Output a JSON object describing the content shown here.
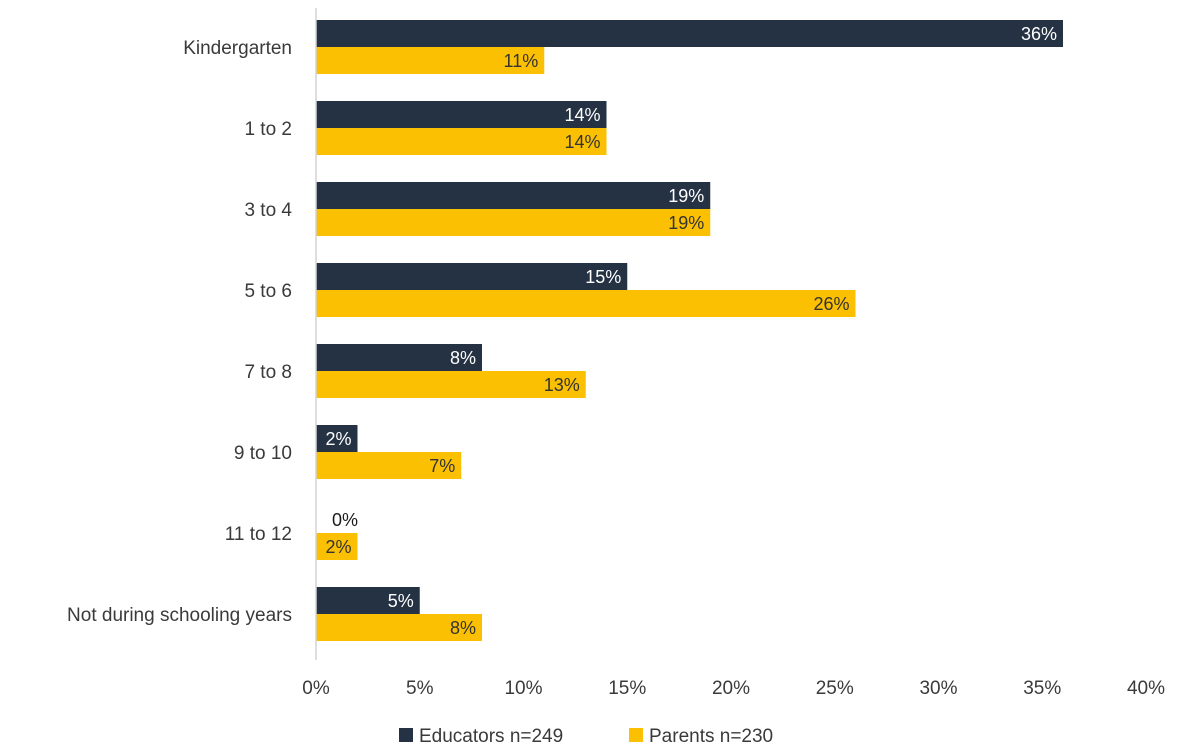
{
  "chart_data": {
    "type": "bar",
    "orientation": "horizontal",
    "categories": [
      "Kindergarten",
      "1 to 2",
      "3 to 4",
      "5 to 6",
      "7 to 8",
      "9 to 10",
      "11 to 12",
      "Not during schooling years"
    ],
    "series": [
      {
        "name": "Educators n=249",
        "color": "#253244",
        "values": [
          36,
          14,
          19,
          15,
          8,
          2,
          0,
          5
        ],
        "labels": [
          "36%",
          "14%",
          "19%",
          "15%",
          "8%",
          "2%",
          "0%",
          "5%"
        ]
      },
      {
        "name": "Parents n=230",
        "color": "#FBC002",
        "values": [
          11,
          14,
          19,
          26,
          13,
          7,
          2,
          8
        ],
        "labels": [
          "11%",
          "14%",
          "19%",
          "26%",
          "13%",
          "7%",
          "2%",
          "8%"
        ]
      }
    ],
    "xlim": [
      0,
      40
    ],
    "xticks": [
      "0%",
      "5%",
      "10%",
      "15%",
      "20%",
      "25%",
      "30%",
      "35%",
      "40%"
    ],
    "grid": false,
    "legend": "bottom-center",
    "title": "",
    "xlabel": "",
    "ylabel": ""
  }
}
